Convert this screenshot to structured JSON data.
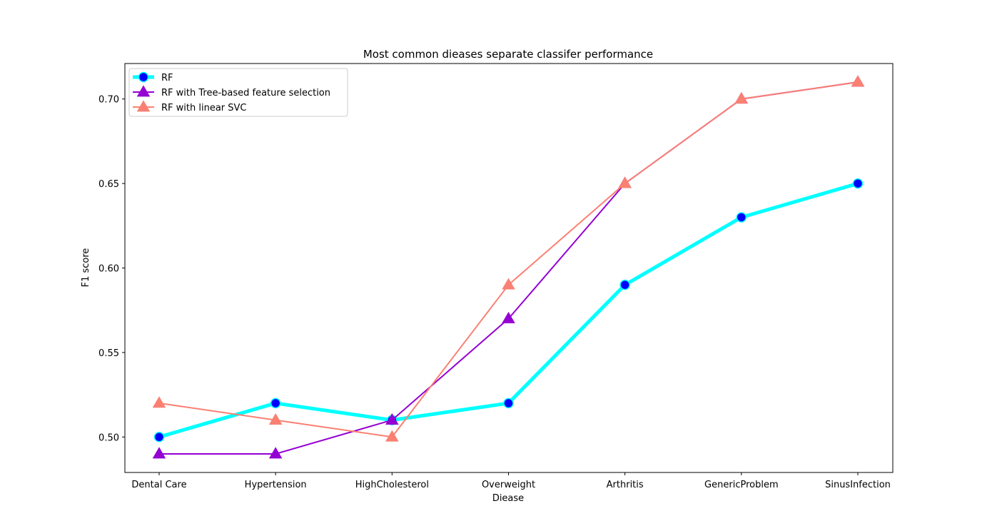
{
  "chart_data": {
    "type": "line",
    "title": "Most common dieases separate classifer performance",
    "xlabel": "Diease",
    "ylabel": "F1 score",
    "categories": [
      "Dental Care",
      "Hypertension",
      "HighCholesterol",
      "Overweight",
      "Arthritis",
      "GenericProblem",
      "SinusInfection"
    ],
    "ylim": [
      0.479,
      0.721
    ],
    "yticks": [
      0.5,
      0.55,
      0.6,
      0.65,
      0.7
    ],
    "ytick_labels": [
      "0.50",
      "0.55",
      "0.60",
      "0.65",
      "0.70"
    ],
    "grid": false,
    "legend_position": "top-left",
    "series": [
      {
        "name": "RF",
        "values": [
          0.5,
          0.52,
          0.51,
          0.52,
          0.59,
          0.63,
          0.65
        ],
        "color": "#00ffff",
        "marker": "circle",
        "marker_fill": "#0000ff",
        "marker_edge": "#00ffff"
      },
      {
        "name": "RF with Tree-based feature selection",
        "values": [
          0.49,
          0.49,
          0.51,
          0.57,
          0.65,
          0.7,
          0.71
        ],
        "color": "#9400d3",
        "marker": "triangle",
        "marker_fill": "#9400d3",
        "marker_edge": "#9400d3"
      },
      {
        "name": "RF with linear SVC",
        "values": [
          0.52,
          0.51,
          0.5,
          0.59,
          0.65,
          0.7,
          0.71
        ],
        "color": "#fa8072",
        "marker": "triangle",
        "marker_fill": "#fa8072",
        "marker_edge": "#fa8072"
      }
    ]
  }
}
